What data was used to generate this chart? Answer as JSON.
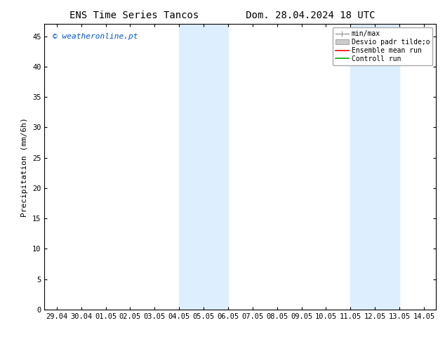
{
  "title_left": "ENS Time Series Tancos",
  "title_right": "Dom. 28.04.2024 18 UTC",
  "ylabel": "Precipitation (mm/6h)",
  "watermark": "© weatheronline.pt",
  "x_tick_labels": [
    "29.04",
    "30.04",
    "01.05",
    "02.05",
    "03.05",
    "04.05",
    "05.05",
    "06.05",
    "07.05",
    "08.05",
    "09.05",
    "10.05",
    "11.05",
    "12.05",
    "13.05",
    "14.05"
  ],
  "x_tick_positions": [
    0,
    1,
    2,
    3,
    4,
    5,
    6,
    7,
    8,
    9,
    10,
    11,
    12,
    13,
    14,
    15
  ],
  "ylim": [
    0,
    47
  ],
  "yticks": [
    0,
    5,
    10,
    15,
    20,
    25,
    30,
    35,
    40,
    45
  ],
  "shaded_regions": [
    {
      "xmin": 5.0,
      "xmax": 7.0,
      "color": "#ddeeff",
      "alpha": 1.0
    },
    {
      "xmin": 12.0,
      "xmax": 14.0,
      "color": "#ddeeff",
      "alpha": 1.0
    }
  ],
  "legend_labels": [
    "min/max",
    "Desvio padr tilde;o",
    "Ensemble mean run",
    "Controll run"
  ],
  "legend_colors": [
    "#999999",
    "#cccccc",
    "#ff0000",
    "#00aa00"
  ],
  "bg_color": "#ffffff",
  "plot_bg_color": "#ffffff",
  "title_fontsize": 10,
  "axis_fontsize": 8,
  "tick_fontsize": 7.5,
  "watermark_fontsize": 8
}
